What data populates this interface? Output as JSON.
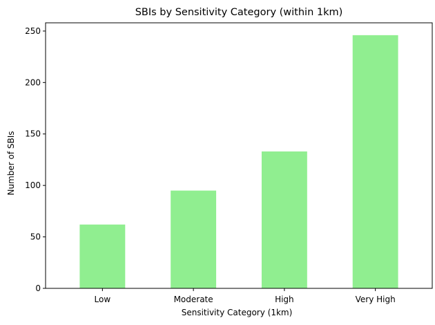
{
  "chart_data": {
    "type": "bar",
    "title": "SBIs by Sensitivity Category (within 1km)",
    "xlabel": "Sensitivity Category (1km)",
    "ylabel": "Number of SBIs",
    "categories": [
      "Low",
      "Moderate",
      "High",
      "Very High"
    ],
    "values": [
      62,
      95,
      133,
      246
    ],
    "ylim": [
      0,
      258
    ],
    "yticks": [
      0,
      50,
      100,
      150,
      200,
      250
    ],
    "grid": false,
    "bar_color": "#90ee90"
  }
}
